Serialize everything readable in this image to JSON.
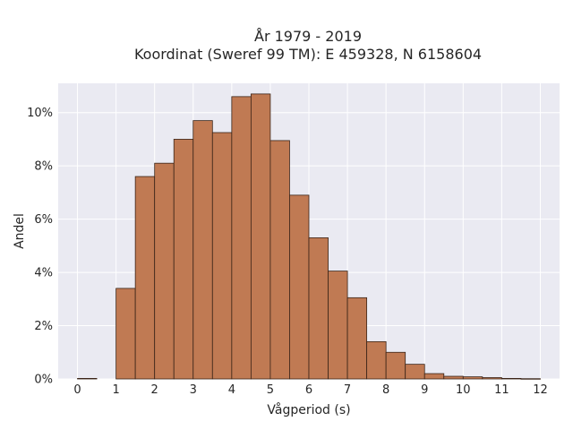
{
  "chart_data": {
    "type": "bar",
    "title_lines": [
      "År 1979 - 2019",
      "Koordinat (Sweref 99 TM): E 459328, N 6158604"
    ],
    "xlabel": "Vågperiod (s)",
    "ylabel": "Andel",
    "x_ticks": [
      "0",
      "1",
      "2",
      "3",
      "4",
      "5",
      "6",
      "7",
      "8",
      "9",
      "10",
      "11",
      "12"
    ],
    "y_ticks": [
      "0%",
      "2%",
      "4%",
      "6%",
      "8%",
      "10%"
    ],
    "xlim": [
      -0.5,
      12.5
    ],
    "ylim": [
      0,
      11.1
    ],
    "bin_width": 0.5,
    "bars": [
      {
        "x0": 0.0,
        "value": 0.02
      },
      {
        "x0": 1.0,
        "value": 3.4
      },
      {
        "x0": 1.5,
        "value": 7.6
      },
      {
        "x0": 2.0,
        "value": 8.1
      },
      {
        "x0": 2.5,
        "value": 9.0
      },
      {
        "x0": 3.0,
        "value": 9.7
      },
      {
        "x0": 3.5,
        "value": 9.25
      },
      {
        "x0": 4.0,
        "value": 10.6
      },
      {
        "x0": 4.5,
        "value": 10.7
      },
      {
        "x0": 5.0,
        "value": 8.95
      },
      {
        "x0": 5.5,
        "value": 6.9
      },
      {
        "x0": 6.0,
        "value": 5.3
      },
      {
        "x0": 6.5,
        "value": 4.05
      },
      {
        "x0": 7.0,
        "value": 3.05
      },
      {
        "x0": 7.5,
        "value": 1.4
      },
      {
        "x0": 8.0,
        "value": 1.0
      },
      {
        "x0": 8.5,
        "value": 0.55
      },
      {
        "x0": 9.0,
        "value": 0.2
      },
      {
        "x0": 9.5,
        "value": 0.1
      },
      {
        "x0": 10.0,
        "value": 0.08
      },
      {
        "x0": 10.5,
        "value": 0.05
      },
      {
        "x0": 11.0,
        "value": 0.02
      },
      {
        "x0": 11.5,
        "value": 0.01
      }
    ],
    "grid": true,
    "colors": {
      "bar_fill": "#c07a53",
      "bar_edge": "#3a2418",
      "plot_background": "#eaeaf2",
      "grid": "#ffffff"
    }
  }
}
